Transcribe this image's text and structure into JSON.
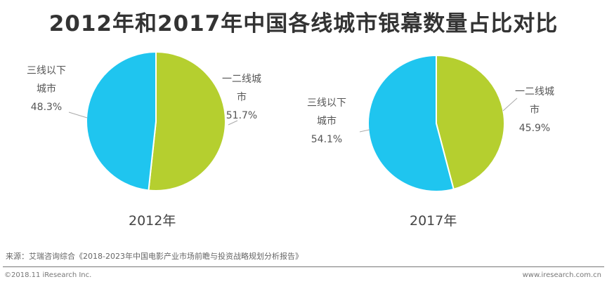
{
  "colors": {
    "tier12": "#b5cf2f",
    "tier3": "#1fc5ef"
  },
  "chart_data": [
    {
      "type": "pie",
      "title": "2012年",
      "slices": [
        {
          "label": "一二线城市",
          "value": 51.7,
          "label_lines": [
            "一二线城",
            "市"
          ],
          "pct": "51.7%"
        },
        {
          "label": "三线以下城市",
          "value": 48.3,
          "label_lines": [
            "三线以下",
            "城市"
          ],
          "pct": "48.3%"
        }
      ]
    },
    {
      "type": "pie",
      "title": "2017年",
      "slices": [
        {
          "label": "一二线城市",
          "value": 45.9,
          "label_lines": [
            "一二线城",
            "市"
          ],
          "pct": "45.9%"
        },
        {
          "label": "三线以下城市",
          "value": 54.1,
          "label_lines": [
            "三线以下",
            "城市"
          ],
          "pct": "54.1%"
        }
      ]
    }
  ],
  "title": "2012年和2017年中国各线城市银幕数量占比对比",
  "footer": {
    "source": "来源：艾瑞咨询综合《2018-2023年中国电影产业市场前瞻与投资战略规划分析报告》",
    "copyright": "©2018.11 iResearch Inc.",
    "website": "www.iresearch.com.cn"
  }
}
